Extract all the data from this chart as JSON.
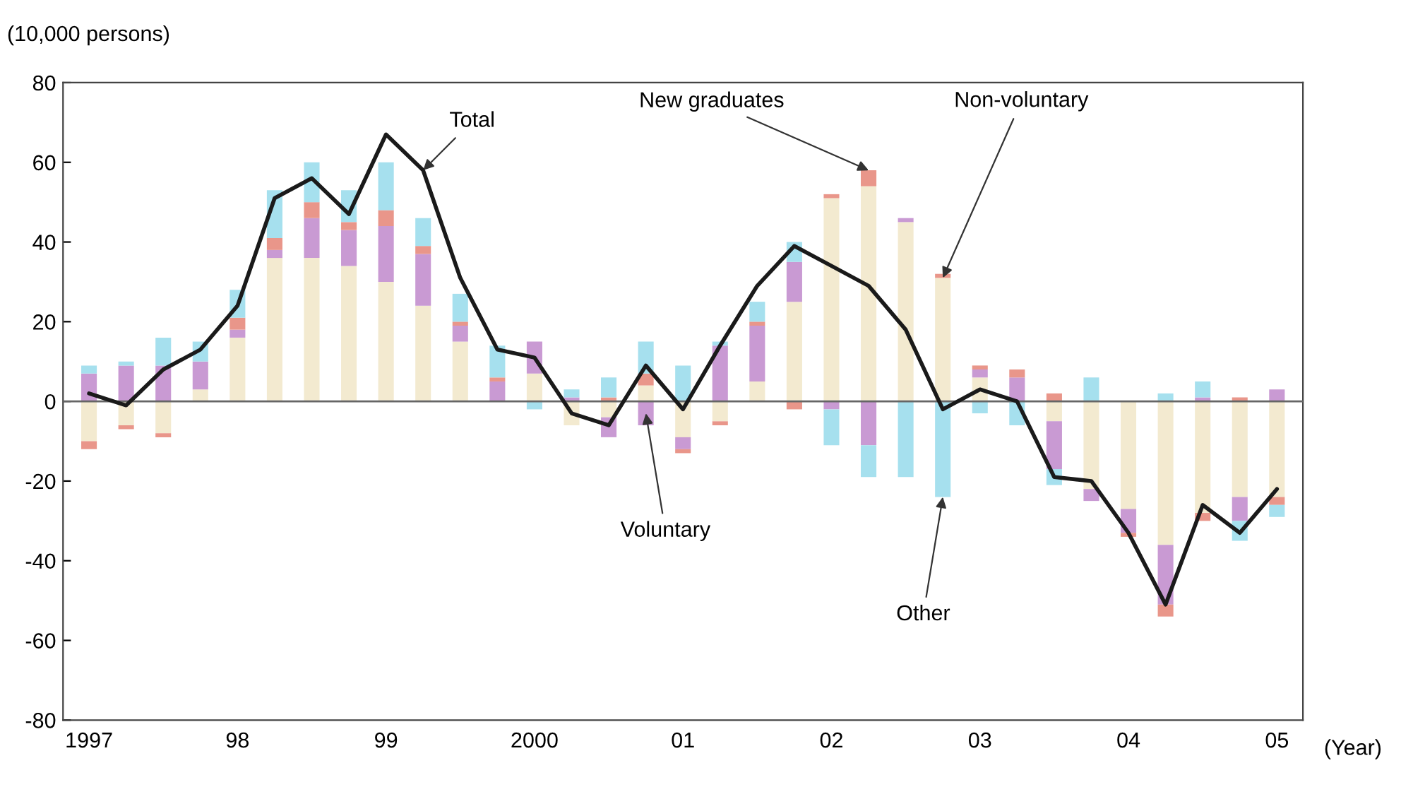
{
  "chart_data": {
    "type": "bar",
    "stacked": true,
    "ylabel": "(10,000 persons)",
    "xlabel": "(Year)",
    "categories": [
      "1997",
      null,
      null,
      null,
      "98",
      null,
      null,
      null,
      "99",
      null,
      null,
      null,
      "2000",
      null,
      null,
      null,
      "01",
      null,
      null,
      null,
      "02",
      null,
      null,
      null,
      "03",
      null,
      null,
      null,
      "04",
      null,
      null,
      null,
      "05"
    ],
    "series": [
      {
        "name": "Non-voluntary",
        "color": "#f3ead0",
        "values": [
          -10,
          -6,
          -8,
          3,
          16,
          36,
          36,
          34,
          30,
          24,
          15,
          0,
          7,
          -6,
          -4,
          4,
          -9,
          -5,
          5,
          25,
          51,
          54,
          45,
          31,
          6,
          0,
          -5,
          -22,
          -27,
          -36,
          -28,
          -24,
          -24
        ]
      },
      {
        "name": "Voluntary",
        "color": "#c99ad3",
        "values": [
          7,
          9,
          9,
          7,
          2,
          2,
          10,
          9,
          14,
          13,
          4,
          5,
          8,
          1,
          -5,
          -6,
          -3,
          14,
          14,
          10,
          -2,
          -11,
          1,
          0,
          2,
          6,
          -12,
          -3,
          -6,
          -15,
          1,
          -6,
          3
        ]
      },
      {
        "name": "New graduates",
        "color": "#e9968a",
        "values": [
          -2,
          -1,
          -1,
          0,
          3,
          3,
          4,
          2,
          4,
          2,
          1,
          1,
          0,
          0,
          1,
          3,
          -1,
          -1,
          1,
          -2,
          1,
          4,
          0,
          1,
          1,
          2,
          2,
          0,
          -1,
          -3,
          -2,
          1,
          -2
        ]
      },
      {
        "name": "Other",
        "color": "#a6e0ee",
        "values": [
          2,
          1,
          7,
          5,
          7,
          12,
          10,
          8,
          12,
          7,
          7,
          8,
          -2,
          2,
          5,
          8,
          9,
          1,
          5,
          5,
          -9,
          -8,
          -19,
          -24,
          -3,
          -6,
          -4,
          6,
          0,
          2,
          4,
          -5,
          -3
        ]
      },
      {
        "name": "Total",
        "type": "line",
        "color": "#1a1a1a",
        "values": [
          2,
          -1,
          8,
          13,
          24,
          51,
          56,
          47,
          67,
          58,
          31,
          13,
          11,
          -3,
          -6,
          9,
          -2,
          14,
          29,
          39,
          34,
          29,
          18,
          -2,
          3,
          0,
          -19,
          -20,
          -33,
          -51,
          -26,
          -33,
          -22
        ]
      }
    ],
    "ylim": [
      -80,
      80
    ],
    "yticks": [
      -80,
      -60,
      -40,
      -20,
      0,
      20,
      40,
      60,
      80
    ],
    "ref_lines": [
      {
        "axis": "y",
        "value": 0
      }
    ],
    "grid": false,
    "legend": false,
    "marker": "none",
    "line_style": "solid"
  }
}
